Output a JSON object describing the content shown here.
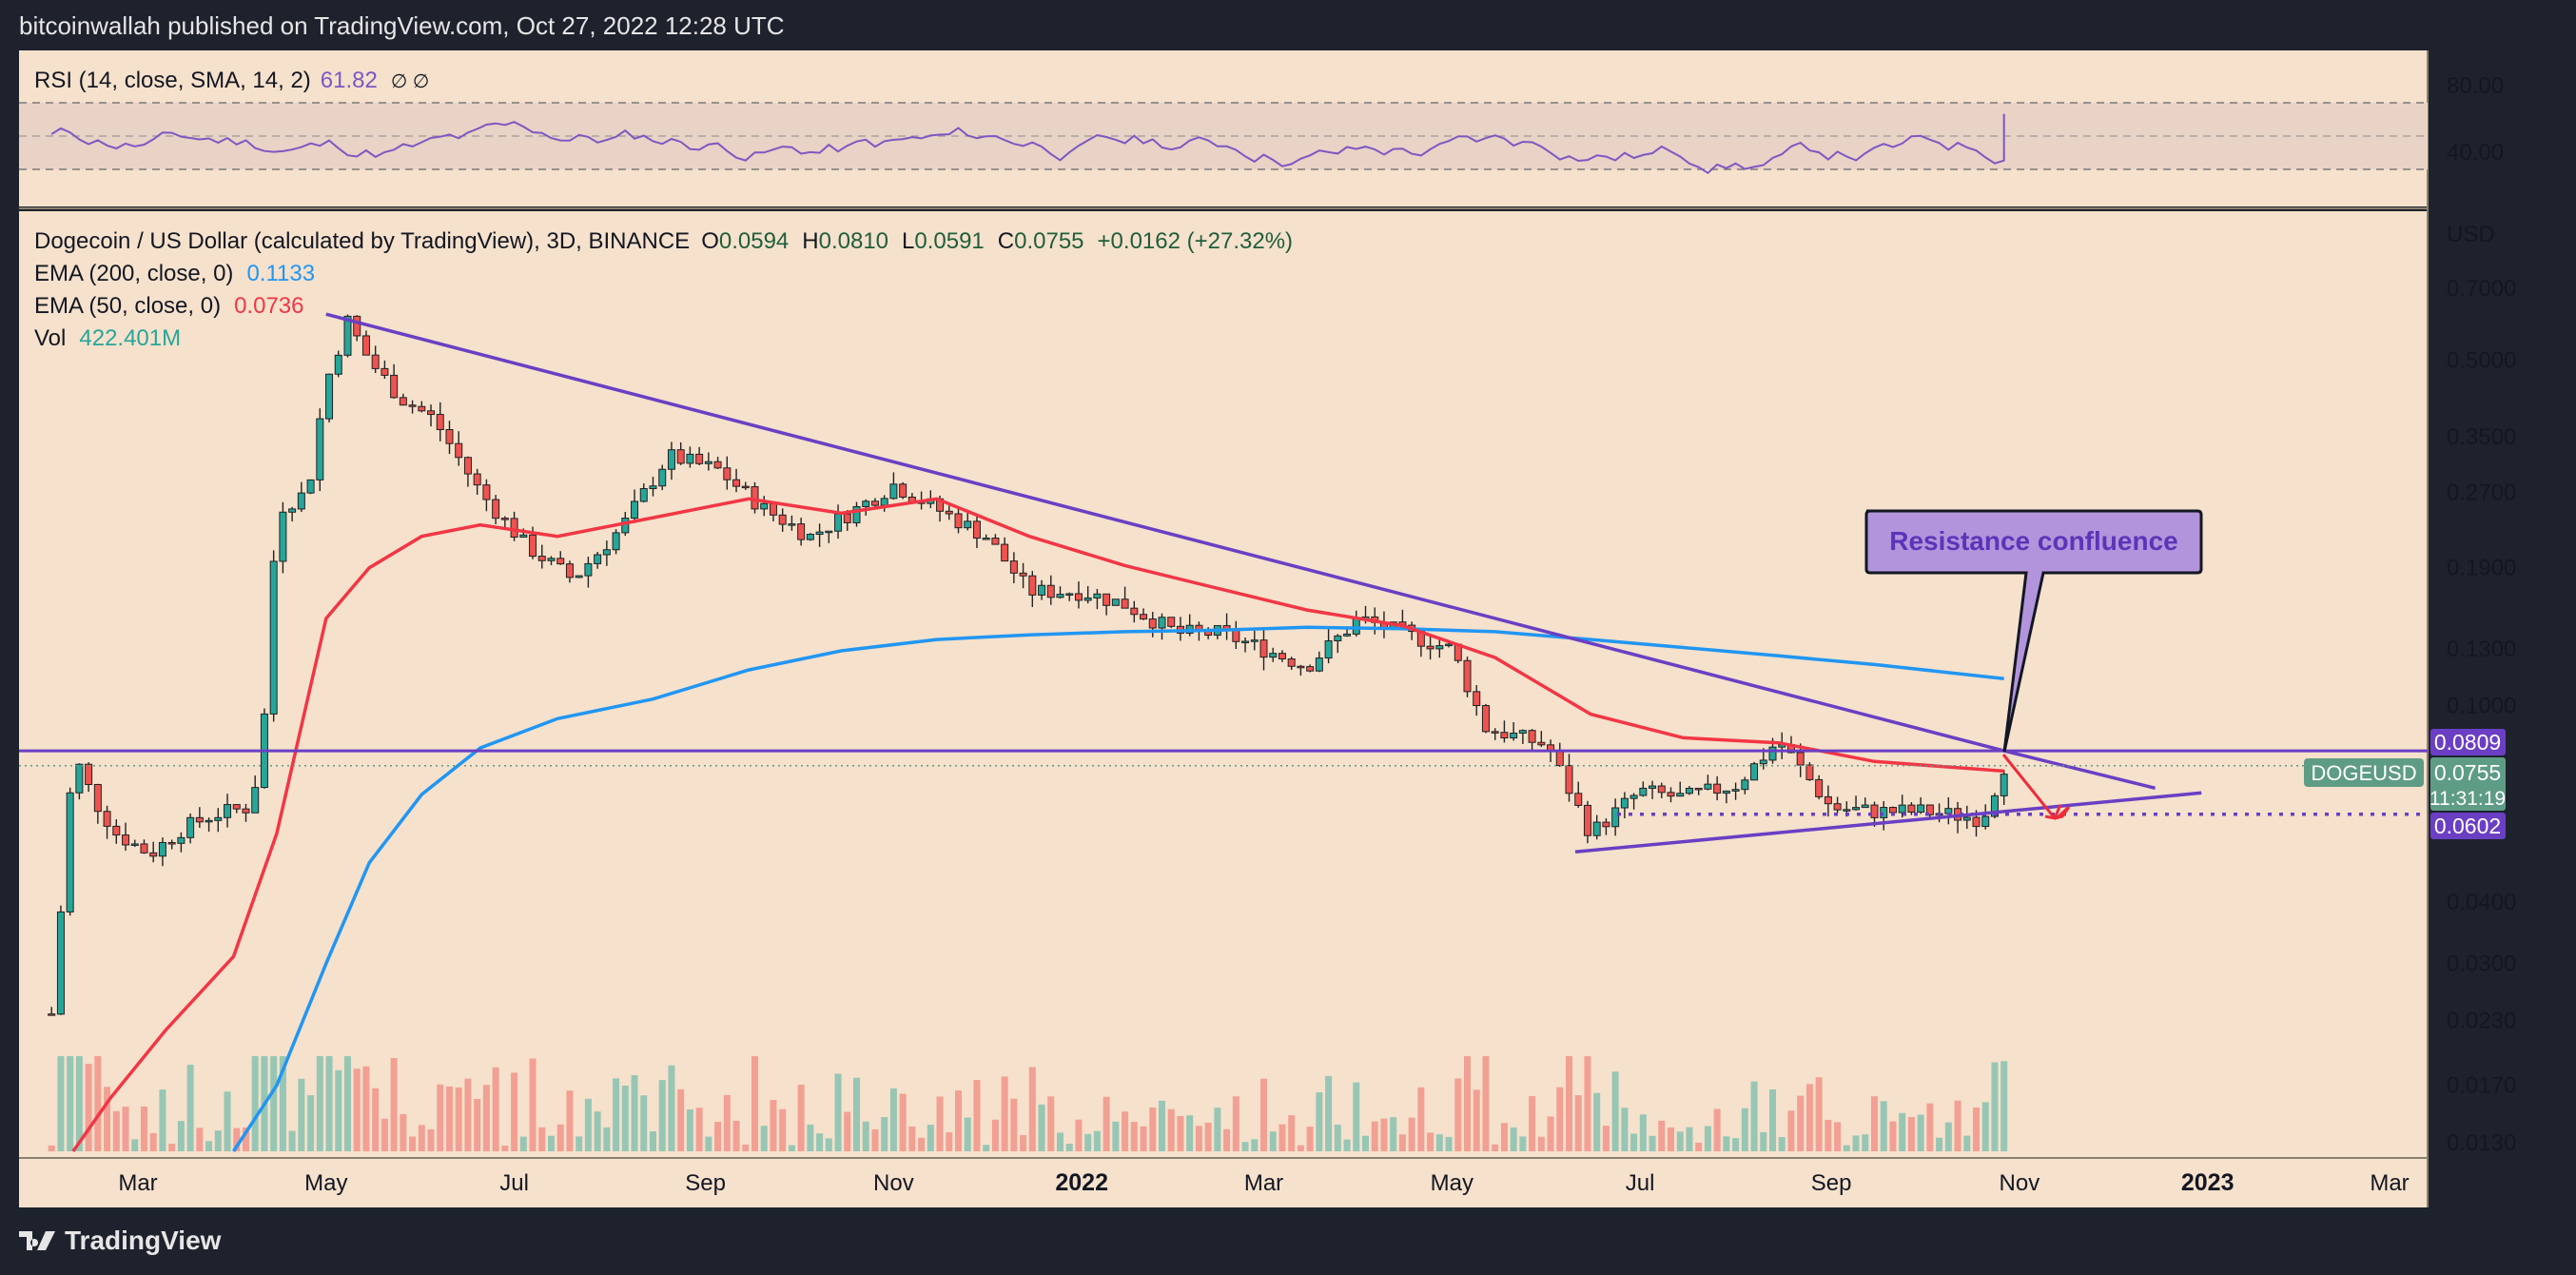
{
  "header": {
    "publisher": "bitcoinwallah published on TradingView.com, Oct 27, 2022 12:28 UTC"
  },
  "footer": {
    "brand": "TradingView"
  },
  "colors": {
    "ema200": "#2196f3",
    "ema50": "#f23645",
    "rsi": "#7e57c2",
    "trend": "#6a3fc4",
    "up": "#26a69a",
    "down": "#ef5350",
    "bg": "#f5e1cc"
  },
  "rsi_panel": {
    "label": "RSI (14, close, SMA, 14, 2)",
    "value": "61.82",
    "extra": "∅ ∅",
    "ticks": [
      "80.00",
      "40.00"
    ]
  },
  "main_legend": {
    "symbol": "Dogecoin / US Dollar (calculated by TradingView), 3D, BINANCE",
    "open_label": "O",
    "open": "0.0594",
    "high_label": "H",
    "high": "0.0810",
    "low_label": "L",
    "low": "0.0591",
    "close_label": "C",
    "close": "0.0755",
    "change": "+0.0162 (+27.32%)",
    "ema200_label": "EMA (200, close, 0)",
    "ema200_value": "0.1133",
    "ema50_label": "EMA (50, close, 0)",
    "ema50_value": "0.0736",
    "vol_label": "Vol",
    "vol_value": "422.401M"
  },
  "price_axis": {
    "currency": "USD",
    "ticks": [
      "0.7000",
      "0.5000",
      "0.3500",
      "0.2700",
      "0.1900",
      "0.1300",
      "0.1000",
      "0.0400",
      "0.0300",
      "0.0230",
      "0.0170",
      "0.0130"
    ],
    "resistance_label": "0.0809",
    "support_label": "0.0602",
    "last_price": "0.0755",
    "countdown": "11:31:19",
    "ticker": "DOGEUSD"
  },
  "time_axis": {
    "ticks": [
      {
        "label": "Mar",
        "bold": false
      },
      {
        "label": "May",
        "bold": false
      },
      {
        "label": "Jul",
        "bold": false
      },
      {
        "label": "Sep",
        "bold": false
      },
      {
        "label": "Nov",
        "bold": false
      },
      {
        "label": "2022",
        "bold": true
      },
      {
        "label": "Mar",
        "bold": false
      },
      {
        "label": "May",
        "bold": false
      },
      {
        "label": "Jul",
        "bold": false
      },
      {
        "label": "Sep",
        "bold": false
      },
      {
        "label": "Nov",
        "bold": false
      },
      {
        "label": "2023",
        "bold": true
      },
      {
        "label": "Mar",
        "bold": false
      }
    ]
  },
  "annotation": {
    "text": "Resistance confluence"
  },
  "chart_data": {
    "type": "line",
    "title": "",
    "scale": "log",
    "ylim": [
      0.0125,
      0.95
    ],
    "horizontal_levels": {
      "resistance": 0.0809,
      "support": 0.0602
    },
    "series": [
      {
        "name": "EMA (200, close, 0)",
        "points": [
          [
            "2021-04-01",
            0.0125
          ],
          [
            "2021-04-15",
            0.017
          ],
          [
            "2021-05-01",
            0.03
          ],
          [
            "2021-05-15",
            0.048
          ],
          [
            "2021-06-01",
            0.066
          ],
          [
            "2021-06-20",
            0.082
          ],
          [
            "2021-07-15",
            0.094
          ],
          [
            "2021-08-15",
            0.103
          ],
          [
            "2021-09-15",
            0.118
          ],
          [
            "2021-10-15",
            0.129
          ],
          [
            "2021-11-15",
            0.136
          ],
          [
            "2021-12-15",
            0.139
          ],
          [
            "2022-01-15",
            0.141
          ],
          [
            "2022-02-15",
            0.142
          ],
          [
            "2022-03-15",
            0.144
          ],
          [
            "2022-04-15",
            0.143
          ],
          [
            "2022-05-15",
            0.141
          ],
          [
            "2022-06-15",
            0.136
          ],
          [
            "2022-07-15",
            0.131
          ],
          [
            "2022-08-15",
            0.126
          ],
          [
            "2022-09-15",
            0.121
          ],
          [
            "2022-10-27",
            0.1133
          ]
        ]
      },
      {
        "name": "EMA (50, close, 0)",
        "points": [
          [
            "2021-02-08",
            0.0125
          ],
          [
            "2021-02-20",
            0.016
          ],
          [
            "2021-03-10",
            0.022
          ],
          [
            "2021-04-01",
            0.031
          ],
          [
            "2021-04-15",
            0.055
          ],
          [
            "2021-05-01",
            0.15
          ],
          [
            "2021-05-15",
            0.19
          ],
          [
            "2021-06-01",
            0.22
          ],
          [
            "2021-06-20",
            0.232
          ],
          [
            "2021-07-15",
            0.22
          ],
          [
            "2021-08-15",
            0.24
          ],
          [
            "2021-09-15",
            0.262
          ],
          [
            "2021-10-15",
            0.245
          ],
          [
            "2021-11-15",
            0.262
          ],
          [
            "2021-12-15",
            0.22
          ],
          [
            "2022-01-15",
            0.192
          ],
          [
            "2022-02-15",
            0.172
          ],
          [
            "2022-03-15",
            0.156
          ],
          [
            "2022-04-15",
            0.145
          ],
          [
            "2022-05-15",
            0.125
          ],
          [
            "2022-06-15",
            0.096
          ],
          [
            "2022-07-15",
            0.086
          ],
          [
            "2022-08-15",
            0.084
          ],
          [
            "2022-09-15",
            0.077
          ],
          [
            "2022-10-27",
            0.0736
          ]
        ]
      },
      {
        "name": "Descending trendline",
        "points": [
          [
            "2021-05-01",
            0.62
          ],
          [
            "2022-10-27",
            0.0809
          ],
          [
            "2022-12-15",
            0.068
          ]
        ]
      },
      {
        "name": "Ascending support",
        "points": [
          [
            "2022-06-10",
            0.0505
          ],
          [
            "2022-12-30",
            0.0665
          ]
        ]
      },
      {
        "name": "Price (approx. close)",
        "points": [
          [
            "2021-01-28",
            0.0125
          ],
          [
            "2021-02-05",
            0.045
          ],
          [
            "2021-02-08",
            0.08
          ],
          [
            "2021-02-15",
            0.064
          ],
          [
            "2021-02-22",
            0.055
          ],
          [
            "2021-03-05",
            0.05
          ],
          [
            "2021-03-15",
            0.056
          ],
          [
            "2021-03-25",
            0.06
          ],
          [
            "2021-04-05",
            0.062
          ],
          [
            "2021-04-10",
            0.075
          ],
          [
            "2021-04-15",
            0.25
          ],
          [
            "2021-04-25",
            0.27
          ],
          [
            "2021-05-01",
            0.45
          ],
          [
            "2021-05-08",
            0.6
          ],
          [
            "2021-05-15",
            0.5
          ],
          [
            "2021-05-25",
            0.42
          ],
          [
            "2021-06-05",
            0.38
          ],
          [
            "2021-06-20",
            0.27
          ],
          [
            "2021-07-05",
            0.21
          ],
          [
            "2021-07-20",
            0.18
          ],
          [
            "2021-08-05",
            0.23
          ],
          [
            "2021-08-20",
            0.32
          ],
          [
            "2021-09-05",
            0.3
          ],
          [
            "2021-09-20",
            0.25
          ],
          [
            "2021-10-05",
            0.22
          ],
          [
            "2021-10-20",
            0.25
          ],
          [
            "2021-11-01",
            0.28
          ],
          [
            "2021-11-15",
            0.25
          ],
          [
            "2021-12-01",
            0.22
          ],
          [
            "2021-12-15",
            0.17
          ],
          [
            "2022-01-01",
            0.17
          ],
          [
            "2022-01-15",
            0.16
          ],
          [
            "2022-02-01",
            0.14
          ],
          [
            "2022-02-15",
            0.14
          ],
          [
            "2022-03-01",
            0.13
          ],
          [
            "2022-03-15",
            0.12
          ],
          [
            "2022-04-01",
            0.15
          ],
          [
            "2022-04-15",
            0.14
          ],
          [
            "2022-05-01",
            0.13
          ],
          [
            "2022-05-12",
            0.09
          ],
          [
            "2022-06-01",
            0.083
          ],
          [
            "2022-06-15",
            0.055
          ],
          [
            "2022-07-01",
            0.067
          ],
          [
            "2022-07-15",
            0.065
          ],
          [
            "2022-08-01",
            0.069
          ],
          [
            "2022-08-15",
            0.085
          ],
          [
            "2022-09-01",
            0.062
          ],
          [
            "2022-09-15",
            0.061
          ],
          [
            "2022-10-01",
            0.061
          ],
          [
            "2022-10-20",
            0.059
          ],
          [
            "2022-10-27",
            0.0755
          ]
        ]
      }
    ]
  }
}
